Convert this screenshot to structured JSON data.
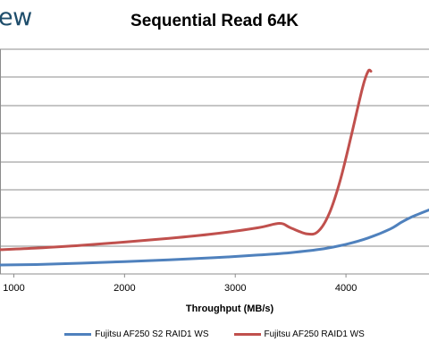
{
  "logo_text": "ew",
  "chart_data": {
    "type": "line",
    "title": "Sequential Read 64K",
    "xlabel": "Throughput (MB/s)",
    "ylabel": "",
    "xlim": [
      875,
      4750
    ],
    "ylim": [
      0,
      10
    ],
    "x_ticks": [
      1000,
      2000,
      3000,
      4000
    ],
    "grid": true,
    "legend": "bottom",
    "series": [
      {
        "name": "Fujitsu AF250 S2 RAID1 WS",
        "color": "#4f81bd",
        "points": [
          [
            875,
            0.4
          ],
          [
            1200,
            0.42
          ],
          [
            1600,
            0.48
          ],
          [
            2000,
            0.55
          ],
          [
            2400,
            0.63
          ],
          [
            2800,
            0.72
          ],
          [
            3200,
            0.84
          ],
          [
            3500,
            0.95
          ],
          [
            3800,
            1.12
          ],
          [
            4000,
            1.32
          ],
          [
            4200,
            1.6
          ],
          [
            4400,
            2.0
          ],
          [
            4500,
            2.3
          ],
          [
            4600,
            2.55
          ],
          [
            4750,
            2.85
          ]
        ]
      },
      {
        "name": "Fujitsu AF250 RAID1 WS",
        "color": "#c0504d",
        "points": [
          [
            875,
            1.08
          ],
          [
            1200,
            1.15
          ],
          [
            1600,
            1.27
          ],
          [
            2000,
            1.42
          ],
          [
            2400,
            1.58
          ],
          [
            2800,
            1.78
          ],
          [
            3200,
            2.05
          ],
          [
            3400,
            2.25
          ],
          [
            3500,
            2.05
          ],
          [
            3650,
            1.78
          ],
          [
            3750,
            1.9
          ],
          [
            3850,
            2.7
          ],
          [
            3950,
            4.2
          ],
          [
            4050,
            6.2
          ],
          [
            4150,
            8.3
          ],
          [
            4200,
            9.02
          ],
          [
            4225,
            9.02
          ]
        ]
      }
    ]
  }
}
